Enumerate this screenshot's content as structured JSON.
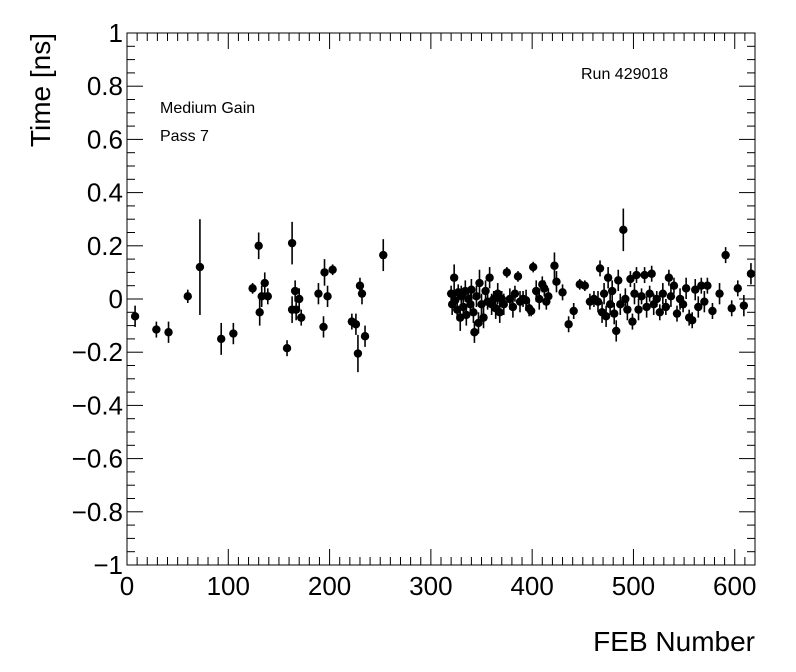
{
  "chart_data": {
    "type": "scatter",
    "title": "",
    "xlabel": "FEB Number",
    "ylabel": "Time [ns]",
    "xlim": [
      0,
      620
    ],
    "ylim": [
      -1,
      1
    ],
    "xticks": [
      "0",
      "100",
      "200",
      "300",
      "400",
      "500",
      "600"
    ],
    "yticks": [
      "−1",
      "−0.8",
      "−0.6",
      "−0.4",
      "−0.2",
      "0",
      "0.2",
      "0.4",
      "0.6",
      "0.8",
      "1"
    ],
    "grid": false,
    "legend": "none",
    "marker_color": "#000000",
    "annotations": {
      "run": "Run 429018",
      "gain": "Medium Gain",
      "pass": "Pass 7"
    },
    "series": [
      {
        "points": [
          {
            "x": 8,
            "y": -0.065,
            "err": 0.04
          },
          {
            "x": 29,
            "y": -0.115,
            "err": 0.03
          },
          {
            "x": 41,
            "y": -0.125,
            "err": 0.04
          },
          {
            "x": 60,
            "y": 0.01,
            "err": 0.025
          },
          {
            "x": 72,
            "y": 0.12,
            "err": 0.18
          },
          {
            "x": 93,
            "y": -0.15,
            "err": 0.06
          },
          {
            "x": 105,
            "y": -0.13,
            "err": 0.04
          },
          {
            "x": 124,
            "y": 0.04,
            "err": 0.02
          },
          {
            "x": 130,
            "y": 0.2,
            "err": 0.05
          },
          {
            "x": 131,
            "y": -0.05,
            "err": 0.05
          },
          {
            "x": 133,
            "y": 0.01,
            "err": 0.04
          },
          {
            "x": 136,
            "y": 0.06,
            "err": 0.04
          },
          {
            "x": 139,
            "y": 0.01,
            "err": 0.03
          },
          {
            "x": 158,
            "y": -0.185,
            "err": 0.03
          },
          {
            "x": 163,
            "y": 0.21,
            "err": 0.08
          },
          {
            "x": 163,
            "y": -0.04,
            "err": 0.05
          },
          {
            "x": 166,
            "y": 0.03,
            "err": 0.04
          },
          {
            "x": 167,
            "y": -0.04,
            "err": 0.04
          },
          {
            "x": 170,
            "y": 0.0,
            "err": 0.04
          },
          {
            "x": 172,
            "y": -0.07,
            "err": 0.03
          },
          {
            "x": 189,
            "y": 0.02,
            "err": 0.04
          },
          {
            "x": 194,
            "y": -0.105,
            "err": 0.04
          },
          {
            "x": 195,
            "y": 0.1,
            "err": 0.05
          },
          {
            "x": 198,
            "y": 0.01,
            "err": 0.04
          },
          {
            "x": 203,
            "y": 0.11,
            "err": 0.02
          },
          {
            "x": 222,
            "y": -0.085,
            "err": 0.03
          },
          {
            "x": 226,
            "y": -0.095,
            "err": 0.04
          },
          {
            "x": 228,
            "y": -0.205,
            "err": 0.07
          },
          {
            "x": 230,
            "y": 0.05,
            "err": 0.03
          },
          {
            "x": 232,
            "y": 0.02,
            "err": 0.04
          },
          {
            "x": 235,
            "y": -0.14,
            "err": 0.04
          },
          {
            "x": 253,
            "y": 0.165,
            "err": 0.06
          },
          {
            "x": 320,
            "y": 0.02,
            "err": 0.03
          },
          {
            "x": 321,
            "y": -0.02,
            "err": 0.04
          },
          {
            "x": 323,
            "y": 0.08,
            "err": 0.05
          },
          {
            "x": 324,
            "y": -0.005,
            "err": 0.04
          },
          {
            "x": 326,
            "y": -0.04,
            "err": 0.04
          },
          {
            "x": 327,
            "y": 0.025,
            "err": 0.03
          },
          {
            "x": 329,
            "y": -0.07,
            "err": 0.05
          },
          {
            "x": 330,
            "y": 0.01,
            "err": 0.04
          },
          {
            "x": 332,
            "y": -0.03,
            "err": 0.04
          },
          {
            "x": 334,
            "y": 0.03,
            "err": 0.04
          },
          {
            "x": 335,
            "y": -0.06,
            "err": 0.04
          },
          {
            "x": 337,
            "y": 0.0,
            "err": 0.03
          },
          {
            "x": 339,
            "y": -0.02,
            "err": 0.04
          },
          {
            "x": 340,
            "y": 0.035,
            "err": 0.04
          },
          {
            "x": 342,
            "y": -0.05,
            "err": 0.04
          },
          {
            "x": 343,
            "y": -0.125,
            "err": 0.04
          },
          {
            "x": 345,
            "y": 0.01,
            "err": 0.04
          },
          {
            "x": 347,
            "y": -0.09,
            "err": 0.04
          },
          {
            "x": 348,
            "y": 0.06,
            "err": 0.05
          },
          {
            "x": 350,
            "y": -0.02,
            "err": 0.04
          },
          {
            "x": 352,
            "y": -0.07,
            "err": 0.04
          },
          {
            "x": 354,
            "y": 0.03,
            "err": 0.04
          },
          {
            "x": 356,
            "y": -0.01,
            "err": 0.03
          },
          {
            "x": 358,
            "y": 0.08,
            "err": 0.04
          },
          {
            "x": 360,
            "y": -0.02,
            "err": 0.04
          },
          {
            "x": 362,
            "y": 0.0,
            "err": 0.03
          },
          {
            "x": 364,
            "y": -0.035,
            "err": 0.04
          },
          {
            "x": 366,
            "y": 0.02,
            "err": 0.04
          },
          {
            "x": 368,
            "y": -0.05,
            "err": 0.04
          },
          {
            "x": 370,
            "y": 0.0,
            "err": 0.03
          },
          {
            "x": 372,
            "y": -0.02,
            "err": 0.04
          },
          {
            "x": 375,
            "y": 0.1,
            "err": 0.02
          },
          {
            "x": 378,
            "y": 0.0,
            "err": 0.04
          },
          {
            "x": 381,
            "y": -0.03,
            "err": 0.04
          },
          {
            "x": 383,
            "y": 0.02,
            "err": 0.03
          },
          {
            "x": 386,
            "y": 0.085,
            "err": 0.02
          },
          {
            "x": 388,
            "y": -0.01,
            "err": 0.04
          },
          {
            "x": 391,
            "y": 0.0,
            "err": 0.03
          },
          {
            "x": 394,
            "y": -0.005,
            "err": 0.04
          },
          {
            "x": 397,
            "y": -0.035,
            "err": 0.03
          },
          {
            "x": 399,
            "y": -0.045,
            "err": 0.02
          },
          {
            "x": 401,
            "y": 0.12,
            "err": 0.02
          },
          {
            "x": 404,
            "y": 0.03,
            "err": 0.04
          },
          {
            "x": 407,
            "y": 0.0,
            "err": 0.04
          },
          {
            "x": 410,
            "y": 0.055,
            "err": 0.03
          },
          {
            "x": 412,
            "y": 0.04,
            "err": 0.03
          },
          {
            "x": 414,
            "y": -0.01,
            "err": 0.03
          },
          {
            "x": 416,
            "y": 0.01,
            "err": 0.03
          },
          {
            "x": 422,
            "y": 0.125,
            "err": 0.05
          },
          {
            "x": 424,
            "y": 0.065,
            "err": 0.04
          },
          {
            "x": 430,
            "y": 0.025,
            "err": 0.03
          },
          {
            "x": 436,
            "y": -0.095,
            "err": 0.03
          },
          {
            "x": 441,
            "y": -0.045,
            "err": 0.03
          },
          {
            "x": 447,
            "y": 0.055,
            "err": 0.02
          },
          {
            "x": 452,
            "y": 0.05,
            "err": 0.02
          },
          {
            "x": 457,
            "y": -0.01,
            "err": 0.03
          },
          {
            "x": 461,
            "y": 0.0,
            "err": 0.03
          },
          {
            "x": 465,
            "y": -0.01,
            "err": 0.04
          },
          {
            "x": 467,
            "y": 0.115,
            "err": 0.03
          },
          {
            "x": 469,
            "y": -0.05,
            "err": 0.04
          },
          {
            "x": 471,
            "y": 0.02,
            "err": 0.04
          },
          {
            "x": 473,
            "y": -0.065,
            "err": 0.04
          },
          {
            "x": 475,
            "y": 0.08,
            "err": 0.04
          },
          {
            "x": 477,
            "y": -0.02,
            "err": 0.04
          },
          {
            "x": 479,
            "y": 0.03,
            "err": 0.04
          },
          {
            "x": 481,
            "y": -0.055,
            "err": 0.04
          },
          {
            "x": 483,
            "y": -0.12,
            "err": 0.04
          },
          {
            "x": 485,
            "y": 0.07,
            "err": 0.04
          },
          {
            "x": 487,
            "y": -0.02,
            "err": 0.04
          },
          {
            "x": 490,
            "y": 0.26,
            "err": 0.08
          },
          {
            "x": 492,
            "y": 0.0,
            "err": 0.04
          },
          {
            "x": 494,
            "y": -0.04,
            "err": 0.04
          },
          {
            "x": 497,
            "y": 0.075,
            "err": 0.03
          },
          {
            "x": 499,
            "y": -0.085,
            "err": 0.03
          },
          {
            "x": 501,
            "y": 0.02,
            "err": 0.04
          },
          {
            "x": 503,
            "y": 0.09,
            "err": 0.03
          },
          {
            "x": 505,
            "y": -0.04,
            "err": 0.04
          },
          {
            "x": 508,
            "y": 0.01,
            "err": 0.03
          },
          {
            "x": 511,
            "y": 0.09,
            "err": 0.03
          },
          {
            "x": 513,
            "y": -0.03,
            "err": 0.04
          },
          {
            "x": 516,
            "y": 0.02,
            "err": 0.03
          },
          {
            "x": 518,
            "y": 0.095,
            "err": 0.03
          },
          {
            "x": 520,
            "y": -0.02,
            "err": 0.04
          },
          {
            "x": 523,
            "y": 0.0,
            "err": 0.03
          },
          {
            "x": 526,
            "y": -0.05,
            "err": 0.03
          },
          {
            "x": 529,
            "y": 0.02,
            "err": 0.04
          },
          {
            "x": 532,
            "y": -0.03,
            "err": 0.03
          },
          {
            "x": 535,
            "y": 0.08,
            "err": 0.03
          },
          {
            "x": 537,
            "y": 0.01,
            "err": 0.04
          },
          {
            "x": 540,
            "y": 0.05,
            "err": 0.03
          },
          {
            "x": 543,
            "y": -0.055,
            "err": 0.03
          },
          {
            "x": 546,
            "y": 0.0,
            "err": 0.04
          },
          {
            "x": 549,
            "y": -0.02,
            "err": 0.03
          },
          {
            "x": 552,
            "y": 0.04,
            "err": 0.04
          },
          {
            "x": 555,
            "y": -0.07,
            "err": 0.03
          },
          {
            "x": 558,
            "y": -0.08,
            "err": 0.03
          },
          {
            "x": 561,
            "y": 0.035,
            "err": 0.04
          },
          {
            "x": 564,
            "y": -0.03,
            "err": 0.04
          },
          {
            "x": 567,
            "y": 0.05,
            "err": 0.03
          },
          {
            "x": 570,
            "y": -0.01,
            "err": 0.04
          },
          {
            "x": 573,
            "y": 0.05,
            "err": 0.03
          },
          {
            "x": 578,
            "y": -0.045,
            "err": 0.03
          },
          {
            "x": 585,
            "y": 0.02,
            "err": 0.04
          },
          {
            "x": 591,
            "y": 0.165,
            "err": 0.03
          },
          {
            "x": 597,
            "y": -0.035,
            "err": 0.03
          },
          {
            "x": 603,
            "y": 0.04,
            "err": 0.03
          },
          {
            "x": 609,
            "y": -0.025,
            "err": 0.04
          },
          {
            "x": 616,
            "y": 0.095,
            "err": 0.04
          }
        ]
      }
    ]
  }
}
